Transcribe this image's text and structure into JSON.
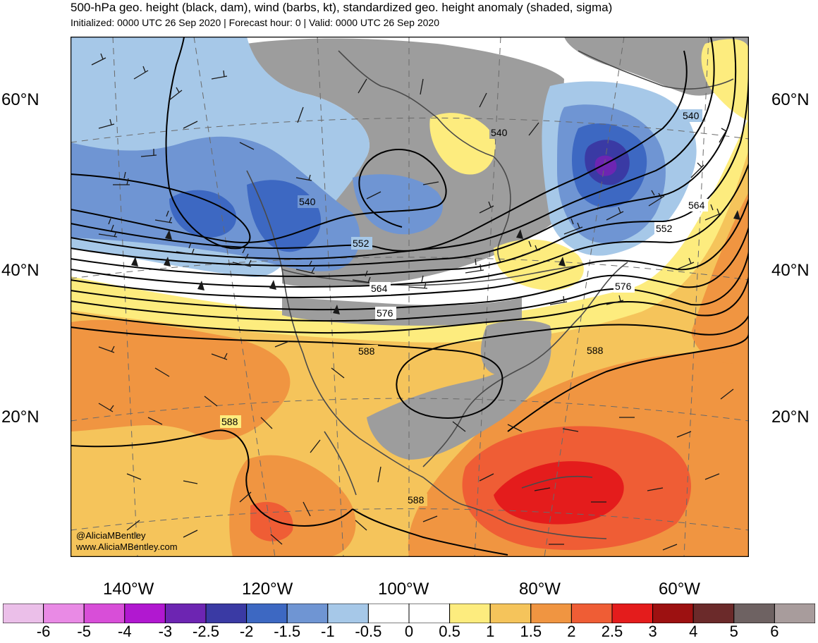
{
  "header": {
    "title": "500-hPa geo. height (black, dam), wind (barbs, kt), standardized geo. height anomaly (shaded, sigma)",
    "subtitle": "Initialized: 0000 UTC 26 Sep 2020 | Forecast hour: 0 | Valid: 0000 UTC 26 Sep 2020"
  },
  "map": {
    "lat_labels": [
      "60°N",
      "40°N",
      "20°N"
    ],
    "lon_labels": [
      "140°W",
      "120°W",
      "100°W",
      "80°W",
      "60°W"
    ],
    "contour_labels": [
      "540",
      "540",
      "540",
      "552",
      "552",
      "564",
      "564",
      "576",
      "576",
      "588",
      "588",
      "588",
      "588"
    ],
    "credits": [
      "@AliciaMBentley",
      "www.AliciaMBentley.com"
    ]
  },
  "colorbar": {
    "ticks": [
      "-6",
      "-5",
      "-4",
      "-3",
      "-2.5",
      "-2",
      "-1.5",
      "-1",
      "-0.5",
      "0",
      "0.5",
      "1",
      "1.5",
      "2",
      "2.5",
      "3",
      "4",
      "5",
      "6"
    ],
    "colors": [
      "#ebbfe9",
      "#e98ae5",
      "#d84ed8",
      "#b118d0",
      "#6d25b2",
      "#3a3aa4",
      "#3d68c2",
      "#6f95d3",
      "#a6c8e8",
      "#ffffff",
      "#ffffff",
      "#fdec7e",
      "#f5c45b",
      "#f09541",
      "#ef5d35",
      "#e41c1c",
      "#9d1111",
      "#6b2a2a",
      "#6e6262",
      "#a89c9c"
    ]
  },
  "colors": {
    "land": "#9d9d9d",
    "contour": "#000000",
    "barb": "#1a1a1a"
  }
}
